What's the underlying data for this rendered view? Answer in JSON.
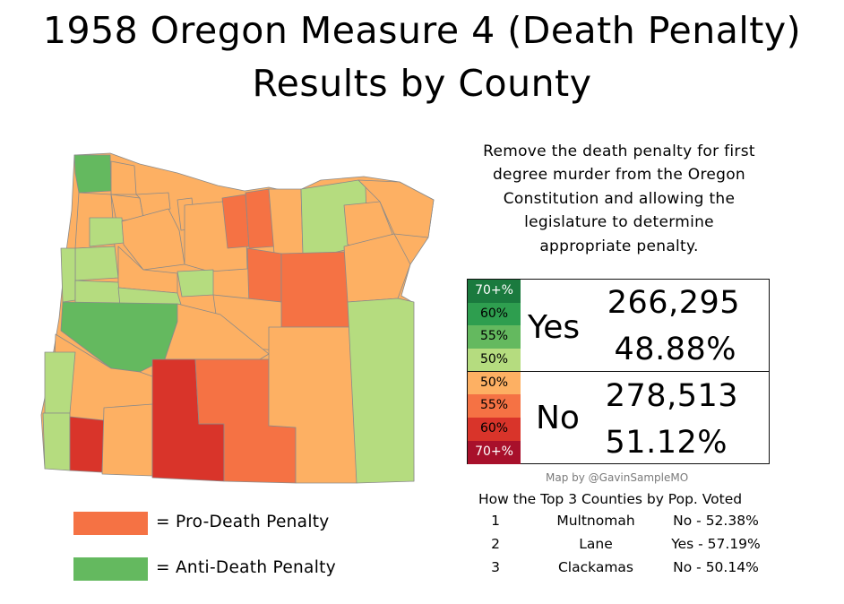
{
  "title_line1": "1958 Oregon Measure 4 (Death Penalty)",
  "title_line2": "Results by County",
  "description": [
    "Remove the death penalty for first",
    "degree murder from the Oregon",
    "Constitution and allowing the",
    "legislature to determine",
    "appropriate penalty."
  ],
  "results": {
    "yes": {
      "label": "Yes",
      "votes": "266,295",
      "percent": "48.88%"
    },
    "no": {
      "label": "No",
      "votes": "278,513",
      "percent": "51.12%"
    }
  },
  "scale": [
    {
      "label": "70+%",
      "color": "#1a7a3e"
    },
    {
      "label": "60%",
      "color": "#2e9e4f"
    },
    {
      "label": "55%",
      "color": "#64b95f"
    },
    {
      "label": "50%",
      "color": "#b5dc7f"
    },
    {
      "label": "50%",
      "color": "#fdb063"
    },
    {
      "label": "55%",
      "color": "#f57244"
    },
    {
      "label": "60%",
      "color": "#d9342a"
    },
    {
      "label": "70+%",
      "color": "#a8102b"
    }
  ],
  "credit": "Map by @GavinSampleMO",
  "top3": {
    "title": "How the Top 3 Counties by Pop. Voted",
    "rows": [
      {
        "rank": "1",
        "county": "Multnomah",
        "result": "No - 52.38%"
      },
      {
        "rank": "2",
        "county": "Lane",
        "result": "Yes - 57.19%"
      },
      {
        "rank": "3",
        "county": "Clackamas",
        "result": "No - 50.14%"
      }
    ]
  },
  "legend": [
    {
      "label": "=  Pro-Death Penalty",
      "color": "#f57244"
    },
    {
      "label": "=  Anti-Death Penalty",
      "color": "#64b95f"
    }
  ],
  "colors": {
    "yes_50": "#b5dc7f",
    "yes_55": "#64b95f",
    "yes_60": "#2e9e4f",
    "no_50": "#fdb063",
    "no_55": "#f57244",
    "no_60": "#d9342a",
    "border": "#7a7a7a"
  }
}
